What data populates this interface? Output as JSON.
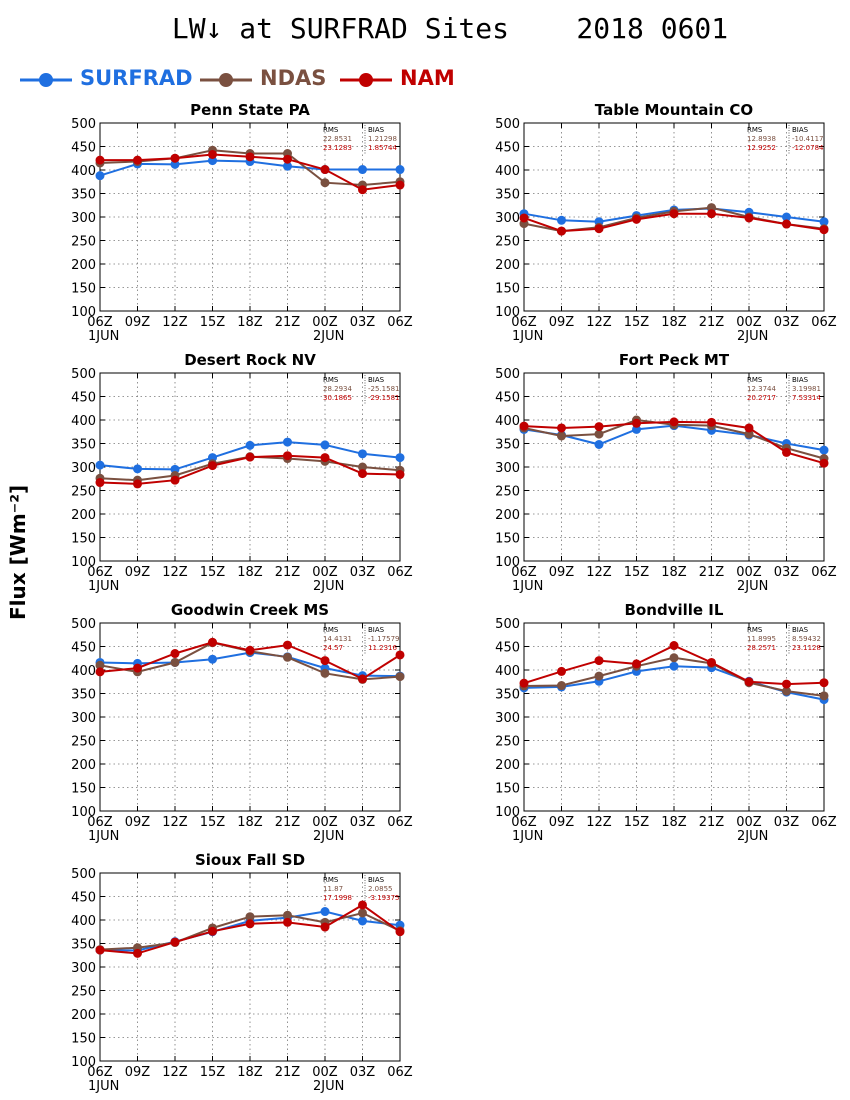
{
  "title": "LW↓ at SURFRAD Sites    2018 0601",
  "y_axis_label": "Flux [Wm⁻²]",
  "legend": [
    {
      "name": "SURFRAD",
      "color": "#1f6fe0"
    },
    {
      "name": "NDAS",
      "color": "#7a5040"
    },
    {
      "name": "NAM",
      "color": "#c00000"
    }
  ],
  "stats_headers": {
    "rms": "RMS",
    "bias": "BIAS"
  },
  "x_tick_labels": [
    "06Z",
    "09Z",
    "12Z",
    "15Z",
    "18Z",
    "21Z",
    "00Z",
    "03Z",
    "06Z"
  ],
  "x_day_labels": {
    "start": "1JUN",
    "mid": "2JUN"
  },
  "y_ticks": [
    100,
    150,
    200,
    250,
    300,
    350,
    400,
    450,
    500
  ],
  "chart_data": [
    {
      "type": "line",
      "title": "Penn State PA",
      "categories": [
        "06Z",
        "09Z",
        "12Z",
        "15Z",
        "18Z",
        "21Z",
        "00Z",
        "03Z",
        "06Z"
      ],
      "ylim": [
        100,
        500
      ],
      "grid": true,
      "series": [
        {
          "name": "SURFRAD",
          "values": [
            388,
            413,
            412,
            420,
            418,
            408,
            401,
            401,
            401
          ]
        },
        {
          "name": "NDAS",
          "values": [
            415,
            418,
            425,
            442,
            435,
            435,
            373,
            368,
            375
          ]
        },
        {
          "name": "NAM",
          "values": [
            421,
            421,
            425,
            433,
            428,
            423,
            401,
            358,
            368
          ]
        }
      ],
      "stats": {
        "rms": [
          "22.8531",
          "23.1283"
        ],
        "bias": [
          "1.21298",
          "1.85744"
        ]
      }
    },
    {
      "type": "line",
      "title": "Table Mountain CO",
      "categories": [
        "06Z",
        "09Z",
        "12Z",
        "15Z",
        "18Z",
        "21Z",
        "00Z",
        "03Z",
        "06Z"
      ],
      "ylim": [
        100,
        500
      ],
      "grid": true,
      "series": [
        {
          "name": "SURFRAD",
          "values": [
            307,
            293,
            290,
            303,
            315,
            318,
            310,
            300,
            290
          ]
        },
        {
          "name": "NDAS",
          "values": [
            286,
            270,
            278,
            298,
            312,
            320,
            300,
            285,
            275
          ]
        },
        {
          "name": "NAM",
          "values": [
            298,
            270,
            275,
            295,
            307,
            307,
            298,
            285,
            273
          ]
        }
      ],
      "stats": {
        "rms": [
          "12.8938",
          "12.9252"
        ],
        "bias": [
          "-10.4117",
          "-12.0784"
        ]
      }
    },
    {
      "type": "line",
      "title": "Desert Rock NV",
      "categories": [
        "06Z",
        "09Z",
        "12Z",
        "15Z",
        "18Z",
        "21Z",
        "00Z",
        "03Z",
        "06Z"
      ],
      "ylim": [
        100,
        500
      ],
      "grid": true,
      "series": [
        {
          "name": "SURFRAD",
          "values": [
            304,
            296,
            295,
            320,
            346,
            353,
            347,
            328,
            320
          ]
        },
        {
          "name": "NDAS",
          "values": [
            276,
            272,
            282,
            307,
            322,
            318,
            312,
            300,
            293
          ]
        },
        {
          "name": "NAM",
          "values": [
            267,
            264,
            272,
            303,
            321,
            324,
            320,
            286,
            284
          ]
        }
      ],
      "stats": {
        "rms": [
          "28.2934",
          "30.1865"
        ],
        "bias": [
          "-25.1581",
          "-29.1581"
        ]
      }
    },
    {
      "type": "line",
      "title": "Fort Peck MT",
      "categories": [
        "06Z",
        "09Z",
        "12Z",
        "15Z",
        "18Z",
        "21Z",
        "00Z",
        "03Z",
        "06Z"
      ],
      "ylim": [
        100,
        500
      ],
      "grid": true,
      "series": [
        {
          "name": "SURFRAD",
          "values": [
            380,
            368,
            348,
            380,
            388,
            378,
            368,
            350,
            336
          ]
        },
        {
          "name": "NDAS",
          "values": [
            383,
            366,
            370,
            400,
            390,
            388,
            370,
            340,
            318
          ]
        },
        {
          "name": "NAM",
          "values": [
            387,
            383,
            386,
            393,
            396,
            395,
            383,
            331,
            308
          ]
        }
      ],
      "stats": {
        "rms": [
          "12.3744",
          "20.2717"
        ],
        "bias": [
          "3.19981",
          "7.53314"
        ]
      }
    },
    {
      "type": "line",
      "title": "Goodwin Creek MS",
      "categories": [
        "06Z",
        "09Z",
        "12Z",
        "15Z",
        "18Z",
        "21Z",
        "00Z",
        "03Z",
        "06Z"
      ],
      "ylim": [
        100,
        500
      ],
      "grid": true,
      "series": [
        {
          "name": "SURFRAD",
          "values": [
            416,
            414,
            416,
            423,
            437,
            428,
            404,
            388,
            387
          ]
        },
        {
          "name": "NDAS",
          "values": [
            410,
            396,
            416,
            458,
            440,
            427,
            393,
            380,
            386
          ]
        },
        {
          "name": "NAM",
          "values": [
            396,
            404,
            435,
            459,
            442,
            453,
            420,
            381,
            432
          ]
        }
      ],
      "stats": {
        "rms": [
          "14.4131",
          "24.57"
        ],
        "bias": [
          "-1.17579",
          "11.2316"
        ]
      }
    },
    {
      "type": "line",
      "title": "Bondville IL",
      "categories": [
        "06Z",
        "09Z",
        "12Z",
        "15Z",
        "18Z",
        "21Z",
        "00Z",
        "03Z",
        "06Z"
      ],
      "ylim": [
        100,
        500
      ],
      "grid": true,
      "series": [
        {
          "name": "SURFRAD",
          "values": [
            362,
            364,
            376,
            397,
            408,
            405,
            376,
            353,
            337
          ]
        },
        {
          "name": "NDAS",
          "values": [
            366,
            367,
            387,
            408,
            426,
            414,
            373,
            355,
            345
          ]
        },
        {
          "name": "NAM",
          "values": [
            372,
            397,
            420,
            413,
            452,
            416,
            375,
            370,
            373
          ]
        }
      ],
      "stats": {
        "rms": [
          "11.8995",
          "28.2571"
        ],
        "bias": [
          "8.59432",
          "23.1128"
        ]
      }
    },
    {
      "type": "line",
      "title": "Sioux Fall SD",
      "categories": [
        "06Z",
        "09Z",
        "12Z",
        "15Z",
        "18Z",
        "21Z",
        "00Z",
        "03Z",
        "06Z"
      ],
      "ylim": [
        100,
        500
      ],
      "grid": true,
      "series": [
        {
          "name": "SURFRAD",
          "values": [
            336,
            335,
            354,
            375,
            398,
            405,
            418,
            398,
            389
          ]
        },
        {
          "name": "NDAS",
          "values": [
            337,
            341,
            352,
            383,
            407,
            410,
            395,
            415,
            377
          ]
        },
        {
          "name": "NAM",
          "values": [
            336,
            329,
            353,
            376,
            392,
            395,
            385,
            432,
            375
          ]
        }
      ],
      "stats": {
        "rms": [
          "11.87",
          "17.1998"
        ],
        "bias": [
          "2.0855",
          "-3.19375"
        ]
      }
    }
  ]
}
